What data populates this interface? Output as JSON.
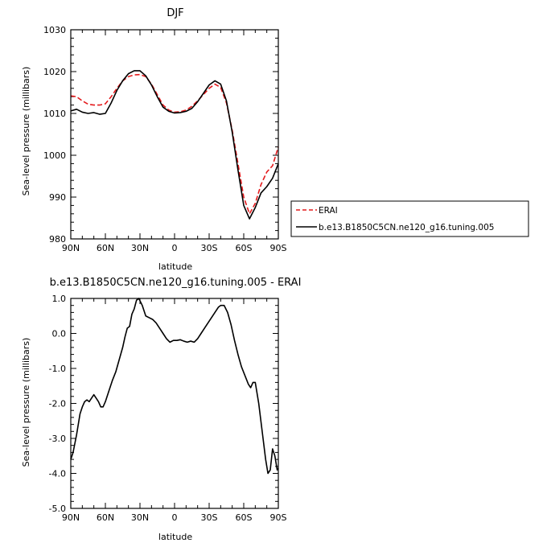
{
  "chart_data": [
    {
      "type": "line",
      "title": "DJF",
      "xlabel": "latitude",
      "ylabel": "Sea-level pressure (millibars)",
      "xlim": [
        90,
        -90
      ],
      "ylim": [
        980,
        1030
      ],
      "x_ticks": [
        {
          "value": 90,
          "label": "90N"
        },
        {
          "value": 60,
          "label": "60N"
        },
        {
          "value": 30,
          "label": "30N"
        },
        {
          "value": 0,
          "label": "0"
        },
        {
          "value": -30,
          "label": "30S"
        },
        {
          "value": -60,
          "label": "60S"
        },
        {
          "value": -90,
          "label": "90S"
        }
      ],
      "y_ticks": [
        {
          "value": 980,
          "label": "980"
        },
        {
          "value": 990,
          "label": "990"
        },
        {
          "value": 1000,
          "label": "1000"
        },
        {
          "value": 1010,
          "label": "1010"
        },
        {
          "value": 1020,
          "label": "1020"
        },
        {
          "value": 1030,
          "label": "1030"
        }
      ],
      "series": [
        {
          "name": "ERAI",
          "color": "#e41a1c",
          "dash": true,
          "x": [
            90,
            85,
            80,
            75,
            70,
            65,
            60,
            55,
            50,
            45,
            40,
            35,
            30,
            25,
            20,
            15,
            10,
            5,
            0,
            -5,
            -10,
            -15,
            -20,
            -25,
            -30,
            -35,
            -40,
            -45,
            -50,
            -55,
            -60,
            -65,
            -70,
            -75,
            -80,
            -85,
            -90
          ],
          "y": [
            1014.2,
            1014.0,
            1013.0,
            1012.2,
            1012.0,
            1012.0,
            1012.3,
            1014.0,
            1016.0,
            1017.8,
            1018.8,
            1019.2,
            1019.3,
            1018.8,
            1017.0,
            1014.5,
            1012.0,
            1010.8,
            1010.3,
            1010.4,
            1010.8,
            1011.7,
            1013.0,
            1014.5,
            1016.0,
            1017.0,
            1016.2,
            1012.5,
            1006.0,
            998.0,
            990.0,
            986.0,
            988.5,
            993.0,
            996.0,
            997.5,
            1002.0
          ]
        },
        {
          "name": "b.e13.B1850C5CN.ne120_g16.tuning.005",
          "color": "#000000",
          "dash": false,
          "x": [
            90,
            85,
            80,
            75,
            70,
            65,
            60,
            55,
            50,
            45,
            40,
            35,
            30,
            25,
            20,
            15,
            10,
            5,
            0,
            -5,
            -10,
            -15,
            -20,
            -25,
            -30,
            -35,
            -40,
            -45,
            -50,
            -55,
            -60,
            -65,
            -70,
            -75,
            -80,
            -85,
            -90
          ],
          "y": [
            1010.6,
            1011.0,
            1010.3,
            1010.0,
            1010.2,
            1009.8,
            1010.0,
            1012.5,
            1015.5,
            1017.8,
            1019.5,
            1020.2,
            1020.2,
            1019.0,
            1016.8,
            1014.0,
            1011.5,
            1010.5,
            1010.1,
            1010.2,
            1010.5,
            1011.2,
            1012.8,
            1014.8,
            1016.8,
            1017.8,
            1017.0,
            1013.0,
            1005.5,
            996.5,
            988.0,
            984.8,
            987.5,
            991.0,
            992.5,
            994.5,
            998.0
          ]
        }
      ],
      "legend": "right"
    },
    {
      "type": "line",
      "title": "b.e13.B1850C5CN.ne120_g16.tuning.005 - ERAI",
      "xlabel": "latitude",
      "ylabel": "Sea-level pressure (millibars)",
      "xlim": [
        90,
        -90
      ],
      "ylim": [
        -5.0,
        1.0
      ],
      "x_ticks": [
        {
          "value": 90,
          "label": "90N"
        },
        {
          "value": 60,
          "label": "60N"
        },
        {
          "value": 30,
          "label": "30N"
        },
        {
          "value": 0,
          "label": "0"
        },
        {
          "value": -30,
          "label": "30S"
        },
        {
          "value": -60,
          "label": "60S"
        },
        {
          "value": -90,
          "label": "90S"
        }
      ],
      "y_ticks": [
        {
          "value": -5.0,
          "label": "-5.0"
        },
        {
          "value": -4.0,
          "label": "-4.0"
        },
        {
          "value": -3.0,
          "label": "-3.0"
        },
        {
          "value": -2.0,
          "label": "-2.0"
        },
        {
          "value": -1.0,
          "label": "-1.0"
        },
        {
          "value": 0.0,
          "label": "0.0"
        },
        {
          "value": 1.0,
          "label": "1.0"
        }
      ],
      "series": [
        {
          "color": "#000000",
          "dash": false,
          "x": [
            90,
            88,
            85,
            82,
            80,
            78,
            76,
            74,
            72,
            70,
            68,
            66,
            64,
            62,
            60,
            57,
            54,
            51,
            48,
            45,
            43,
            41,
            39,
            37,
            35,
            33,
            31,
            28,
            25,
            22,
            19,
            16,
            13,
            10,
            7,
            4,
            1,
            -2,
            -5,
            -8,
            -11,
            -14,
            -17,
            -20,
            -23,
            -26,
            -29,
            -32,
            -35,
            -38,
            -40,
            -43,
            -46,
            -49,
            -52,
            -55,
            -58,
            -61,
            -64,
            -66,
            -68,
            -70,
            -73,
            -76,
            -79,
            -81,
            -83,
            -85,
            -87,
            -89,
            -90
          ],
          "y": [
            -3.6,
            -3.4,
            -2.9,
            -2.3,
            -2.1,
            -1.95,
            -1.9,
            -1.95,
            -1.85,
            -1.75,
            -1.85,
            -1.95,
            -2.1,
            -2.1,
            -1.95,
            -1.65,
            -1.35,
            -1.1,
            -0.75,
            -0.4,
            -0.1,
            0.15,
            0.2,
            0.55,
            0.7,
            0.95,
            1.0,
            0.8,
            0.5,
            0.45,
            0.4,
            0.3,
            0.15,
            0.0,
            -0.15,
            -0.25,
            -0.2,
            -0.2,
            -0.18,
            -0.22,
            -0.25,
            -0.22,
            -0.25,
            -0.15,
            0.0,
            0.15,
            0.3,
            0.45,
            0.6,
            0.75,
            0.8,
            0.8,
            0.6,
            0.25,
            -0.2,
            -0.6,
            -0.95,
            -1.2,
            -1.45,
            -1.55,
            -1.4,
            -1.4,
            -2.0,
            -2.8,
            -3.6,
            -4.0,
            -3.9,
            -3.3,
            -3.5,
            -3.9,
            -3.85
          ]
        }
      ]
    }
  ]
}
